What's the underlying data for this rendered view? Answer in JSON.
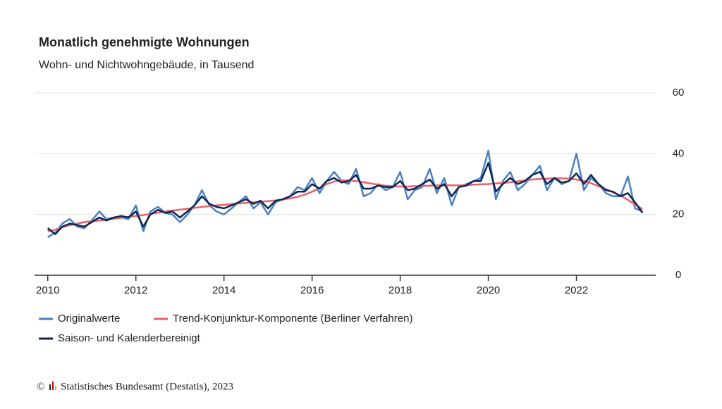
{
  "chart_data": {
    "type": "line",
    "title": "Monatlich genehmigte Wohnungen",
    "subtitle": "Wohn- und Nichtwohngebäude, in Tausend",
    "source": "Statistisches Bundesamt (Destatis), 2023",
    "x": [
      2010,
      2010.17,
      2010.33,
      2010.5,
      2010.67,
      2010.83,
      2011,
      2011.17,
      2011.33,
      2011.5,
      2011.67,
      2011.83,
      2012,
      2012.17,
      2012.33,
      2012.5,
      2012.67,
      2012.83,
      2013,
      2013.17,
      2013.33,
      2013.5,
      2013.67,
      2013.83,
      2014,
      2014.17,
      2014.33,
      2014.5,
      2014.67,
      2014.83,
      2015,
      2015.17,
      2015.33,
      2015.5,
      2015.67,
      2015.83,
      2016,
      2016.17,
      2016.33,
      2016.5,
      2016.67,
      2016.83,
      2017,
      2017.17,
      2017.33,
      2017.5,
      2017.67,
      2017.83,
      2018,
      2018.17,
      2018.33,
      2018.5,
      2018.67,
      2018.83,
      2019,
      2019.17,
      2019.33,
      2019.5,
      2019.67,
      2019.83,
      2020,
      2020.17,
      2020.33,
      2020.5,
      2020.67,
      2020.83,
      2021,
      2021.17,
      2021.33,
      2021.5,
      2021.67,
      2021.83,
      2022,
      2022.17,
      2022.33,
      2022.5,
      2022.67,
      2022.83,
      2023,
      2023.17,
      2023.33,
      2023.5
    ],
    "series": [
      {
        "name": "Originalwerte",
        "color": "#4a80c2",
        "width": 2.5,
        "values": [
          12.5,
          14,
          17,
          18.5,
          16,
          15.5,
          18,
          21,
          18.5,
          19,
          19,
          18.5,
          23,
          14.5,
          21,
          22.5,
          20.5,
          20,
          17.5,
          20,
          23,
          28,
          23,
          21,
          20,
          22,
          24,
          26,
          22,
          24,
          20,
          24,
          25,
          26,
          29,
          28,
          32,
          27,
          31,
          34,
          31,
          30,
          35,
          26,
          27,
          30,
          28,
          29,
          34,
          25,
          28,
          29,
          35,
          27,
          32,
          23,
          29,
          30,
          31,
          32,
          41,
          25,
          31,
          34,
          28,
          30,
          33,
          36,
          28,
          32,
          30,
          31,
          40,
          28,
          32,
          30,
          27,
          26,
          26,
          32.5,
          22,
          21
        ]
      },
      {
        "name": "Trend-Konjunktur-Komponente (Berliner Verfahren)",
        "color": "#ea5f6a",
        "width": 2.5,
        "values": [
          14.5,
          15,
          15.8,
          16.5,
          17,
          17.5,
          17.8,
          18,
          18.3,
          18.6,
          18.9,
          19.2,
          19.5,
          19.8,
          20.2,
          20.6,
          21,
          21.3,
          21.6,
          21.9,
          22.2,
          22.5,
          22.8,
          23,
          23.2,
          23.4,
          23.6,
          23.8,
          24,
          24.2,
          24.4,
          24.6,
          24.9,
          25.3,
          25.8,
          26.5,
          27.5,
          28.7,
          30,
          30.8,
          31.2,
          31.2,
          31,
          30.6,
          30.2,
          29.8,
          29.5,
          29.3,
          29.2,
          29.2,
          29.3,
          29.4,
          29.5,
          29.6,
          29.6,
          29.6,
          29.6,
          29.7,
          29.8,
          29.9,
          30,
          30.2,
          30.4,
          30.6,
          30.9,
          31.2,
          31.5,
          31.7,
          31.8,
          31.9,
          31.9,
          31.8,
          31.5,
          31,
          30.3,
          29.3,
          28.3,
          27.3,
          26.2,
          24.8,
          23.3,
          21.8
        ]
      },
      {
        "name": "Saison- und Kalenderbereinigt",
        "color": "#0b2750",
        "width": 2.5,
        "values": [
          15.5,
          13.5,
          16,
          17,
          16.5,
          16,
          17.5,
          19,
          18,
          19,
          19.5,
          19,
          21,
          16,
          20,
          21.5,
          20.5,
          21,
          19,
          21,
          23,
          26,
          23.5,
          22.5,
          22,
          23,
          24,
          25,
          23.5,
          24.5,
          22,
          24.5,
          25,
          26,
          27.5,
          27.5,
          30,
          28.5,
          31,
          32,
          30.5,
          31,
          33,
          28.5,
          28.5,
          29.5,
          29,
          29,
          31,
          28,
          28.5,
          30,
          31.5,
          28.5,
          30,
          26,
          29,
          29.5,
          31,
          31,
          37,
          27.5,
          30,
          32,
          30,
          31,
          33,
          34,
          30,
          32,
          30.5,
          31,
          33.5,
          30,
          33,
          30,
          28,
          27.5,
          26,
          27,
          24,
          20.5
        ]
      }
    ],
    "xlim": [
      2009.7,
      2023.8
    ],
    "xticks": [
      2010,
      2012,
      2014,
      2016,
      2018,
      2020,
      2022
    ],
    "ylim": [
      0,
      60
    ],
    "yticks": [
      0,
      20,
      40,
      60
    ],
    "grid": true,
    "legend": "bottom"
  }
}
